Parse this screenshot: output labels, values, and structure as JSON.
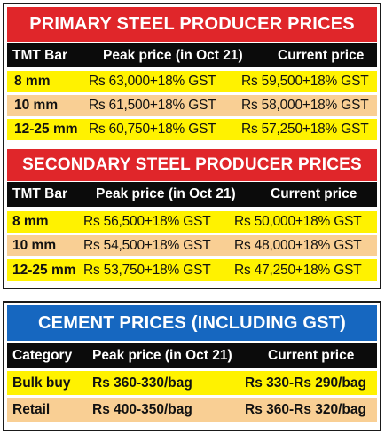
{
  "primary": {
    "title": "PRIMARY STEEL PRODUCER PRICES",
    "headers": [
      "TMT Bar",
      "Peak price (in Oct 21)",
      "Current price"
    ],
    "rows": [
      {
        "size": "8 mm",
        "peak": "Rs 63,000+18% GST",
        "current": "Rs 59,500+18% GST"
      },
      {
        "size": "10 mm",
        "peak": "Rs 61,500+18% GST",
        "current": "Rs 58,000+18% GST"
      },
      {
        "size": "12-25 mm",
        "peak": "Rs 60,750+18% GST",
        "current": "Rs 57,250+18% GST"
      }
    ]
  },
  "secondary": {
    "title": "SECONDARY STEEL PRODUCER PRICES",
    "headers": [
      "TMT Bar",
      "Peak price (in Oct 21)",
      "Current price"
    ],
    "rows": [
      {
        "size": "8 mm",
        "peak": "Rs 56,500+18% GST",
        "current": "Rs 50,000+18% GST"
      },
      {
        "size": "10 mm",
        "peak": "Rs 54,500+18% GST",
        "current": "Rs 48,000+18% GST"
      },
      {
        "size": "12-25 mm",
        "peak": "Rs 53,750+18% GST",
        "current": "Rs 47,250+18% GST"
      }
    ]
  },
  "cement": {
    "title": "CEMENT PRICES (INCLUDING GST)",
    "headers": [
      "Category",
      "Peak price (in Oct 21)",
      "Current price"
    ],
    "rows": [
      {
        "category": "Bulk buy",
        "peak": "Rs 360-330/bag",
        "current": "Rs 330-Rs 290/bag"
      },
      {
        "category": "Retail",
        "peak": "Rs 400-350/bag",
        "current": "Rs 360-Rs 320/bag"
      }
    ]
  },
  "colors": {
    "banner_red": "#e0262a",
    "banner_blue": "#1667c0",
    "header_black": "#0b0b0b",
    "row_yellow": "#fff200",
    "row_peach": "#f9cf94"
  }
}
